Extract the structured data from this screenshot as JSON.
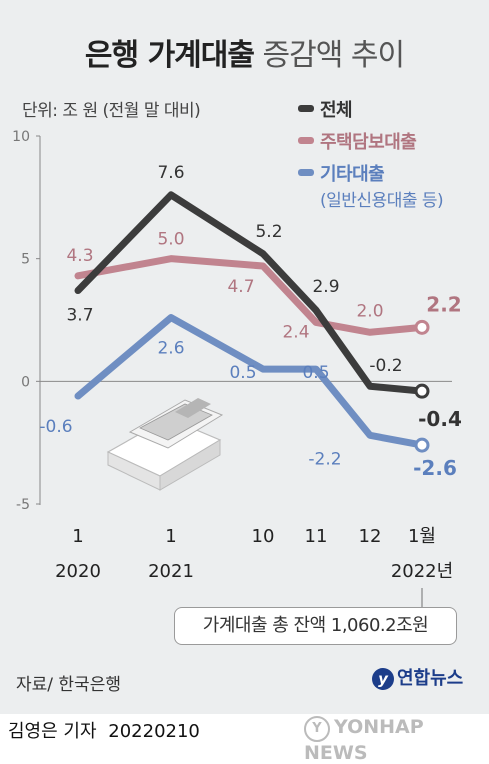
{
  "header": {
    "title_bold": "은행 가계대출",
    "title_light": "증감액 추이",
    "unit": "단위: 조 원 (전월 말 대비)"
  },
  "legend": {
    "total": "전체",
    "mortgage": "주택담보대출",
    "other": "기타대출",
    "other_sub": "(일반신용대출 등)"
  },
  "callout": "가계대출 총 잔액 1,060.2조원",
  "footer": {
    "source": "자료/ 한국은행",
    "logo": "연합뉴스",
    "reporter": "김영은 기자",
    "date": "20220210",
    "watermark": "YONHAP NEWS"
  },
  "colors": {
    "total": "#3c3c3c",
    "mortgage": "#c1848f",
    "other": "#6f8ec2"
  },
  "chart_data": {
    "type": "line",
    "categories": [
      "2020-01",
      "2021-01",
      "2021-10",
      "2021-11",
      "2021-12",
      "2022-01"
    ],
    "x_tick_labels": [
      "1",
      "1",
      "10",
      "11",
      "12",
      "1월"
    ],
    "year_labels": [
      {
        "at": 0,
        "text": "2020"
      },
      {
        "at": 1,
        "text": "2021"
      },
      {
        "at": 5,
        "text": "2022년"
      }
    ],
    "ylim": [
      -5,
      10
    ],
    "yticks": [
      "-5",
      "0",
      "5",
      "10"
    ],
    "ytick_values": [
      -5,
      0,
      5,
      10
    ],
    "series": [
      {
        "key": "mortgage",
        "name": "주택담보대출",
        "values": [
          4.3,
          5.0,
          4.7,
          2.4,
          2.0,
          2.2
        ],
        "labels": [
          "4.3",
          "5.0",
          "4.7",
          "2.4",
          "2.0",
          "2.2"
        ]
      },
      {
        "key": "other",
        "name": "기타대출",
        "values": [
          -0.6,
          2.6,
          0.5,
          0.5,
          -2.2,
          -2.6
        ],
        "labels": [
          "-0.6",
          "2.6",
          "0.5",
          "0.5",
          "-2.2",
          "-2.6"
        ]
      },
      {
        "key": "total",
        "name": "전체",
        "values": [
          3.7,
          7.6,
          5.2,
          2.9,
          -0.2,
          -0.4
        ],
        "labels": [
          "3.7",
          "7.6",
          "5.2",
          "2.9",
          "-0.2",
          "-0.4"
        ]
      }
    ]
  }
}
